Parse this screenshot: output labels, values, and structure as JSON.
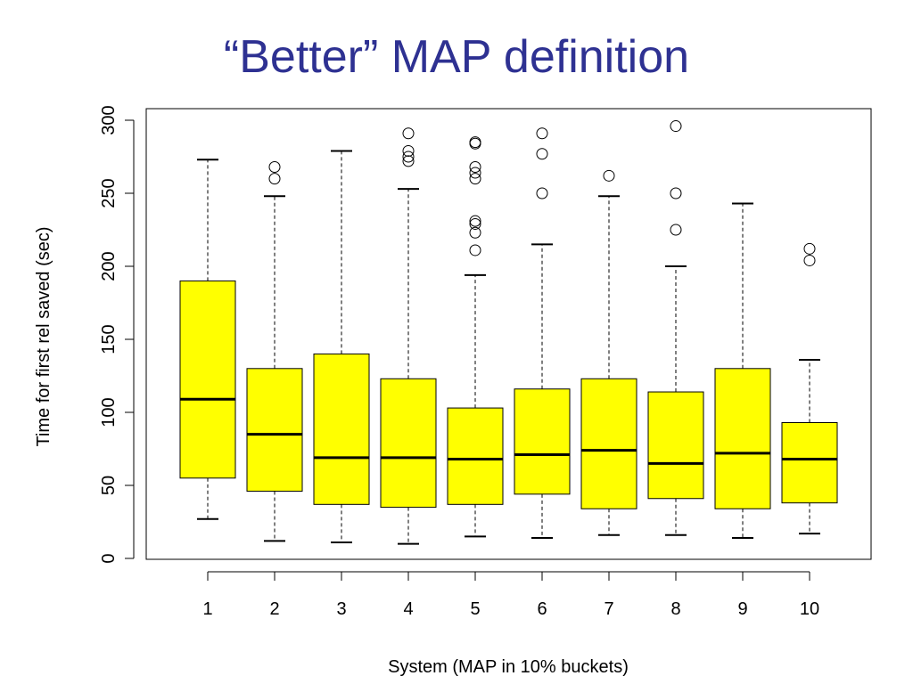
{
  "slide": {
    "title": "“Better” MAP definition"
  },
  "chart_data": {
    "type": "boxplot",
    "title": "",
    "xlabel": "System (MAP in 10% buckets)",
    "ylabel": "Time for first rel saved (sec)",
    "ylim": [
      0,
      300
    ],
    "yticks": [
      0,
      50,
      100,
      150,
      200,
      250,
      300
    ],
    "categories": [
      "1",
      "2",
      "3",
      "4",
      "5",
      "6",
      "7",
      "8",
      "9",
      "10"
    ],
    "box_color": "#ffff00",
    "boxes": [
      {
        "category": "1",
        "whisker_low": 27,
        "q1": 55,
        "median": 109,
        "q3": 190,
        "whisker_high": 273,
        "outliers": []
      },
      {
        "category": "2",
        "whisker_low": 12,
        "q1": 46,
        "median": 85,
        "q3": 130,
        "whisker_high": 248,
        "outliers": [
          260,
          268
        ]
      },
      {
        "category": "3",
        "whisker_low": 11,
        "q1": 37,
        "median": 69,
        "q3": 140,
        "whisker_high": 279,
        "outliers": []
      },
      {
        "category": "4",
        "whisker_low": 10,
        "q1": 35,
        "median": 69,
        "q3": 123,
        "whisker_high": 253,
        "outliers": [
          272,
          275,
          279,
          291
        ]
      },
      {
        "category": "5",
        "whisker_low": 15,
        "q1": 37,
        "median": 68,
        "q3": 103,
        "whisker_high": 194,
        "outliers": [
          211,
          223,
          229,
          231,
          260,
          264,
          268,
          284,
          285
        ]
      },
      {
        "category": "6",
        "whisker_low": 14,
        "q1": 44,
        "median": 71,
        "q3": 116,
        "whisker_high": 215,
        "outliers": [
          250,
          277,
          291
        ]
      },
      {
        "category": "7",
        "whisker_low": 16,
        "q1": 34,
        "median": 74,
        "q3": 123,
        "whisker_high": 248,
        "outliers": [
          262
        ]
      },
      {
        "category": "8",
        "whisker_low": 16,
        "q1": 41,
        "median": 65,
        "q3": 114,
        "whisker_high": 200,
        "outliers": [
          225,
          250,
          296
        ]
      },
      {
        "category": "9",
        "whisker_low": 14,
        "q1": 34,
        "median": 72,
        "q3": 130,
        "whisker_high": 243,
        "outliers": []
      },
      {
        "category": "10",
        "whisker_low": 17,
        "q1": 38,
        "median": 68,
        "q3": 93,
        "whisker_high": 136,
        "outliers": [
          204,
          212
        ]
      }
    ],
    "grid": false,
    "legend": "none"
  }
}
